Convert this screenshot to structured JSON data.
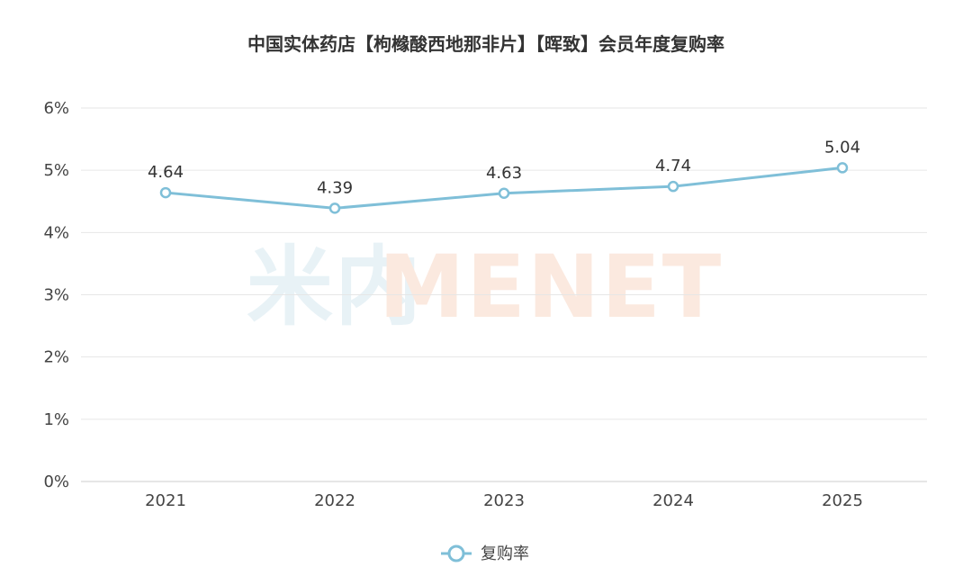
{
  "chart_data": {
    "type": "line",
    "title": "中国实体药店【枸橼酸西地那非片】【晖致】会员年度复购率",
    "xlabel": "",
    "ylabel": "",
    "categories": [
      "2021",
      "2022",
      "2023",
      "2024",
      "2025"
    ],
    "series": [
      {
        "name": "复购率",
        "values": [
          4.64,
          4.39,
          4.63,
          4.74,
          5.04
        ],
        "data_labels": [
          "4.64",
          "4.39",
          "4.63",
          "4.74",
          "5.04"
        ],
        "color": "#7fbfd8"
      }
    ],
    "ylim": [
      0,
      6
    ],
    "y_ticks": [
      0,
      1,
      2,
      3,
      4,
      5,
      6
    ],
    "y_tick_labels": [
      "0%",
      "1%",
      "2%",
      "3%",
      "4%",
      "5%",
      "6%"
    ],
    "grid": true,
    "legend": "bottom-center"
  },
  "watermark": {
    "text_cn": "米内",
    "text_en": "MENET",
    "color_cn": "#e6f1f6",
    "color_en": "#fbe7dc"
  },
  "colors": {
    "grid": "#e6e6e6",
    "axis": "#cccccc",
    "text": "#333333"
  }
}
